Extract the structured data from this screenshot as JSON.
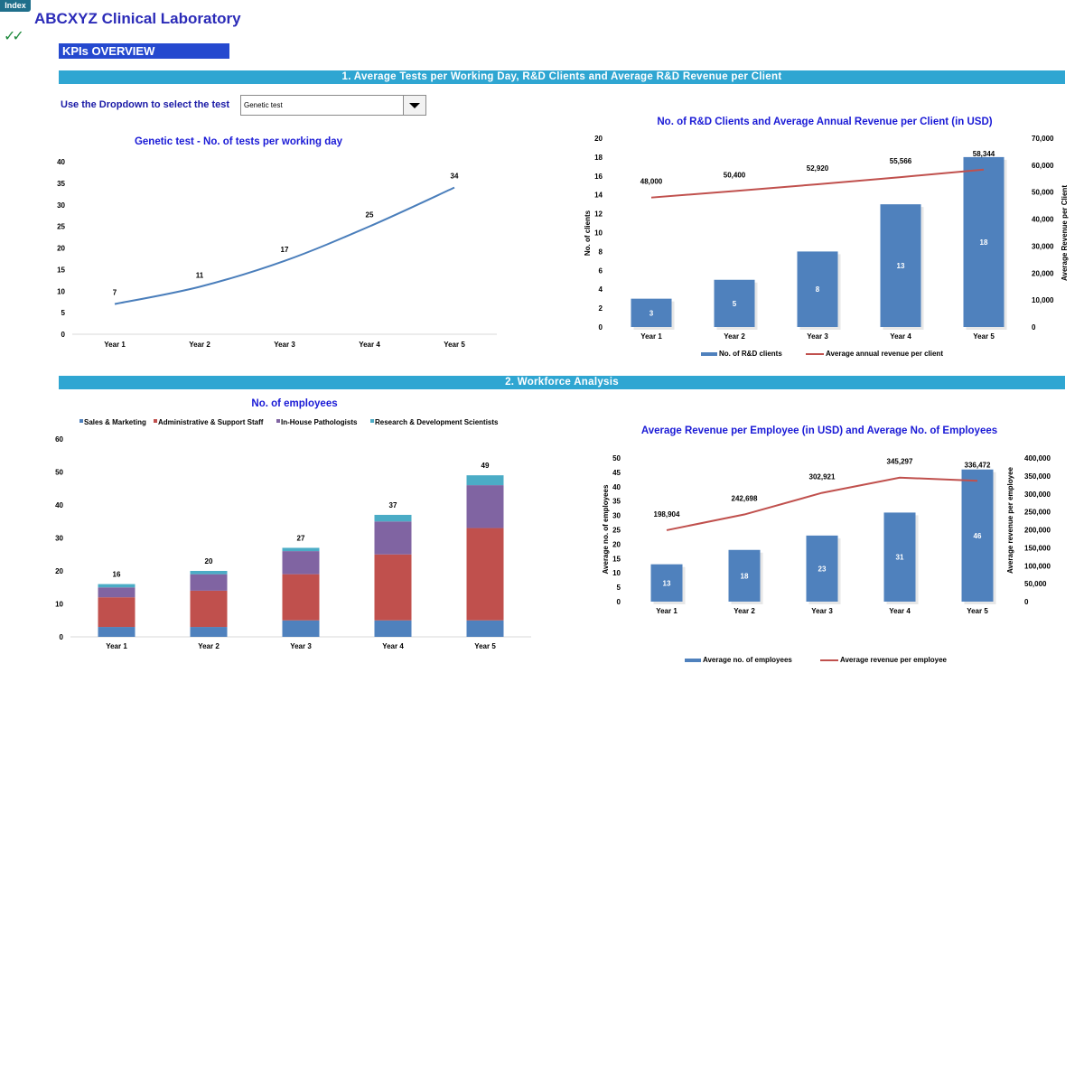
{
  "header": {
    "index_tab": "Index",
    "title": "ABCXYZ Clinical Laboratory",
    "check_glyph": "✓✓",
    "kpi_banner": "KPIs OVERVIEW",
    "section1": "1. Average Tests per Working Day, R&D Clients and Average R&D Revenue per Client",
    "section2": "2. Workforce Analysis",
    "dropdown_label": "Use the Dropdown to select the test",
    "dropdown_value": "Genetic test"
  },
  "colors": {
    "title": "#2b2bb8",
    "chart_title": "#1a1ad6",
    "bar_blue": "#4f81bd",
    "line_red": "#c0504d",
    "line_blue": "#4a7ebb",
    "purple": "#8064a2",
    "teal": "#4bacc6"
  },
  "chart_data": [
    {
      "id": "tests",
      "type": "line",
      "title": "Genetic test -  No. of tests per working day",
      "categories": [
        "Year 1",
        "Year 2",
        "Year 3",
        "Year 4",
        "Year 5"
      ],
      "series": [
        {
          "values": [
            7,
            11,
            17,
            25,
            34
          ]
        }
      ],
      "ylim": [
        0,
        40
      ],
      "yticks": [
        "0",
        "5",
        "10",
        "15",
        "20",
        "25",
        "30",
        "35",
        "40"
      ],
      "grid": false
    },
    {
      "id": "rnd",
      "type": "bar",
      "title": "No. of R&D Clients and Average Annual Revenue per Client (in USD)",
      "categories": [
        "Year 1",
        "Year 2",
        "Year 3",
        "Year 4",
        "Year 5"
      ],
      "ylabel": "No. of clients",
      "y2label": "Average Revenue per Client",
      "ylim": [
        0,
        20
      ],
      "y2lim": [
        0,
        70000
      ],
      "yticks": [
        "0",
        "2",
        "4",
        "6",
        "8",
        "10",
        "12",
        "14",
        "16",
        "18",
        "20"
      ],
      "y2ticks": [
        "0",
        "10,000",
        "20,000",
        "30,000",
        "40,000",
        "50,000",
        "60,000",
        "70,000"
      ],
      "series": [
        {
          "name": "No. of R&D clients",
          "type": "bar",
          "values": [
            3,
            5,
            8,
            13,
            18
          ],
          "labels": [
            "3",
            "5",
            "8",
            "13",
            "18"
          ]
        },
        {
          "name": "Average annual revenue per client",
          "type": "line",
          "axis": "secondary",
          "values": [
            48000,
            50400,
            52920,
            55566,
            58344
          ],
          "labels": [
            "48,000",
            "50,400",
            "52,920",
            "55,566",
            "58,344"
          ]
        }
      ],
      "legend": "bottom"
    },
    {
      "id": "emp",
      "type": "bar",
      "stacked": true,
      "title": "No. of employees",
      "categories": [
        "Year 1",
        "Year 2",
        "Year 3",
        "Year 4",
        "Year 5"
      ],
      "ylim": [
        0,
        60
      ],
      "yticks": [
        "0",
        "10",
        "20",
        "30",
        "40",
        "50",
        "60"
      ],
      "series": [
        {
          "name": "Sales & Marketing",
          "values": [
            3,
            3,
            5,
            5,
            5
          ]
        },
        {
          "name": "Administrative & Support Staff",
          "values": [
            9,
            11,
            14,
            20,
            28
          ]
        },
        {
          "name": "In-House Pathologists",
          "values": [
            3,
            5,
            7,
            10,
            13
          ]
        },
        {
          "name": "Research & Development Scientists",
          "values": [
            1,
            1,
            1,
            2,
            3
          ]
        }
      ],
      "totals": [
        "16",
        "20",
        "27",
        "37",
        "49"
      ],
      "legend": "top"
    },
    {
      "id": "rev",
      "type": "bar",
      "title": "Average Revenue per Employee (in USD) and Average No. of Employees",
      "categories": [
        "Year 1",
        "Year 2",
        "Year 3",
        "Year 4",
        "Year 5"
      ],
      "ylabel": "Average no. of employees",
      "y2label": "Average revenue per employee",
      "ylim": [
        0,
        50
      ],
      "y2lim": [
        0,
        400000
      ],
      "yticks": [
        "0",
        "5",
        "10",
        "15",
        "20",
        "25",
        "30",
        "35",
        "40",
        "45",
        "50"
      ],
      "y2ticks": [
        "0",
        "50,000",
        "100,000",
        "150,000",
        "200,000",
        "250,000",
        "300,000",
        "350,000",
        "400,000"
      ],
      "series": [
        {
          "name": "Average no. of employees",
          "type": "bar",
          "values": [
            13,
            18,
            23,
            31,
            46
          ],
          "labels": [
            "13",
            "18",
            "23",
            "31",
            "46"
          ]
        },
        {
          "name": "Average revenue per employee",
          "type": "line",
          "axis": "secondary",
          "values": [
            198904,
            242698,
            302921,
            345297,
            336472
          ],
          "labels": [
            "198,904",
            "242,698",
            "302,921",
            "345,297",
            "336,472"
          ]
        }
      ],
      "legend": "bottom"
    }
  ]
}
